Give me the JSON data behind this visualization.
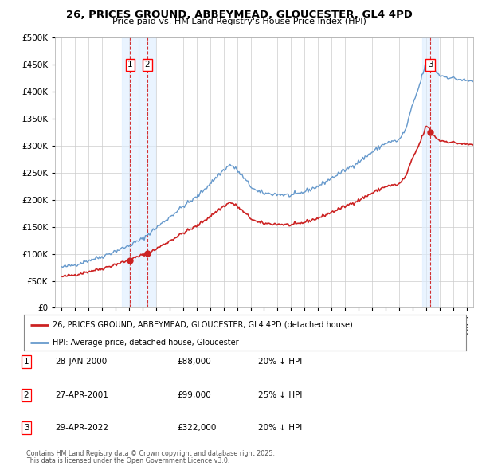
{
  "title": "26, PRICES GROUND, ABBEYMEAD, GLOUCESTER, GL4 4PD",
  "subtitle": "Price paid vs. HM Land Registry's House Price Index (HPI)",
  "bg_color": "#ffffff",
  "plot_bg_color": "#ffffff",
  "grid_color": "#cccccc",
  "hpi_color": "#6699cc",
  "price_color": "#cc2222",
  "shade_color": "#ddeeff",
  "vline_color": "#cc0000",
  "dot_color": "#cc2222",
  "transactions": [
    {
      "date_num": 2000.08,
      "price": 88000,
      "label": "1"
    },
    {
      "date_num": 2001.33,
      "price": 99000,
      "label": "2"
    },
    {
      "date_num": 2022.33,
      "price": 322000,
      "label": "3"
    }
  ],
  "transaction_details": [
    {
      "label": "1",
      "date": "28-JAN-2000",
      "price": "£88,000",
      "pct": "20% ↓ HPI"
    },
    {
      "label": "2",
      "date": "27-APR-2001",
      "price": "£99,000",
      "pct": "25% ↓ HPI"
    },
    {
      "label": "3",
      "date": "29-APR-2022",
      "price": "£322,000",
      "pct": "20% ↓ HPI"
    }
  ],
  "legend_line1": "26, PRICES GROUND, ABBEYMEAD, GLOUCESTER, GL4 4PD (detached house)",
  "legend_line2": "HPI: Average price, detached house, Gloucester",
  "footer_line1": "Contains HM Land Registry data © Crown copyright and database right 2025.",
  "footer_line2": "This data is licensed under the Open Government Licence v3.0.",
  "ylim": [
    0,
    500000
  ],
  "xlim": [
    1994.5,
    2025.5
  ],
  "yticks": [
    0,
    50000,
    100000,
    150000,
    200000,
    250000,
    300000,
    350000,
    400000,
    450000,
    500000
  ],
  "xticks": [
    1995,
    1996,
    1997,
    1998,
    1999,
    2000,
    2001,
    2002,
    2003,
    2004,
    2005,
    2006,
    2007,
    2008,
    2009,
    2010,
    2011,
    2012,
    2013,
    2014,
    2015,
    2016,
    2017,
    2018,
    2019,
    2020,
    2021,
    2022,
    2023,
    2024,
    2025
  ]
}
